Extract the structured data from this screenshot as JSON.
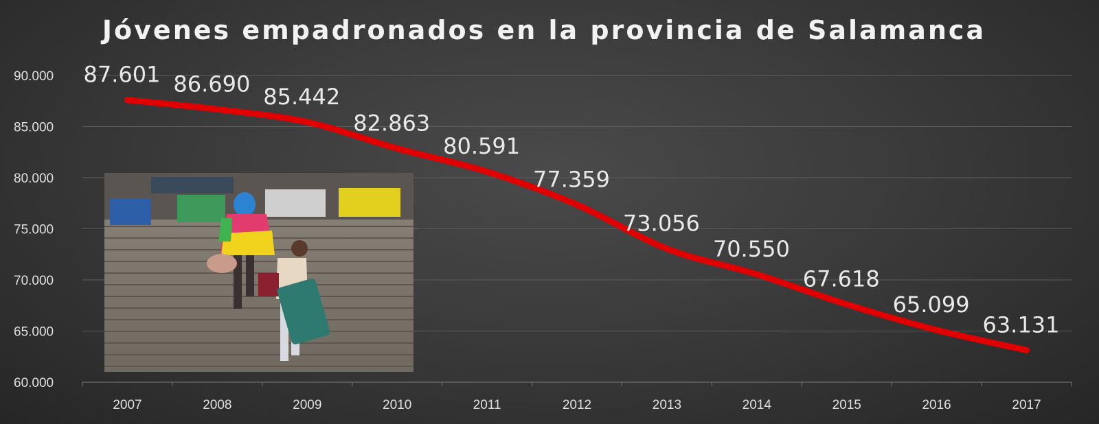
{
  "chart_data": {
    "type": "line",
    "title": "Jóvenes empadronados en la provincia de Salamanca",
    "xlabel": "",
    "ylabel": "",
    "categories": [
      "2007",
      "2008",
      "2009",
      "2010",
      "2011",
      "2012",
      "2013",
      "2014",
      "2015",
      "2016",
      "2017"
    ],
    "series": [
      {
        "values": [
          87601,
          86690,
          85442,
          82863,
          80591,
          77359,
          73056,
          70550,
          67618,
          65099,
          63131
        ],
        "labels": [
          "87.601",
          "86.690",
          "85.442",
          "82.863",
          "80.591",
          "77.359",
          "73.056",
          "70.550",
          "67.618",
          "65.099",
          "63.131"
        ],
        "color": "#e00000"
      }
    ],
    "ylim": [
      60000,
      90000
    ],
    "yticks": [
      60000,
      65000,
      70000,
      75000,
      80000,
      85000,
      90000
    ],
    "ytick_labels": [
      "60.000",
      "65.000",
      "70.000",
      "75.000",
      "80.000",
      "85.000",
      "90.000"
    ],
    "grid": true,
    "legend": "none",
    "background": "#3a3a3a"
  },
  "photo": {
    "description_icon": "photo-young-people-stairs-luggage-icon"
  }
}
